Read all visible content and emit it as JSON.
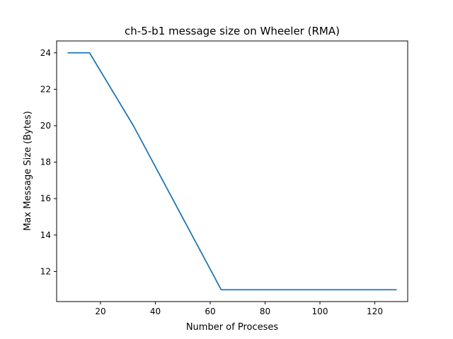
{
  "chart_data": {
    "type": "line",
    "title": "ch-5-b1 message size on Wheeler (RMA)",
    "xlabel": "Number of Proceses",
    "ylabel": "Max Message Size (Bytes)",
    "xlim": [
      4,
      132
    ],
    "ylim": [
      10.35,
      24.65
    ],
    "x_ticks": [
      20,
      40,
      60,
      80,
      100,
      120
    ],
    "y_ticks": [
      12,
      14,
      16,
      18,
      20,
      22,
      24
    ],
    "grid": false,
    "legend": "none",
    "series": [
      {
        "color": "#1f77b4",
        "x": [
          8,
          16,
          32,
          64,
          128
        ],
        "y": [
          24,
          24,
          20,
          11,
          11
        ]
      }
    ]
  }
}
